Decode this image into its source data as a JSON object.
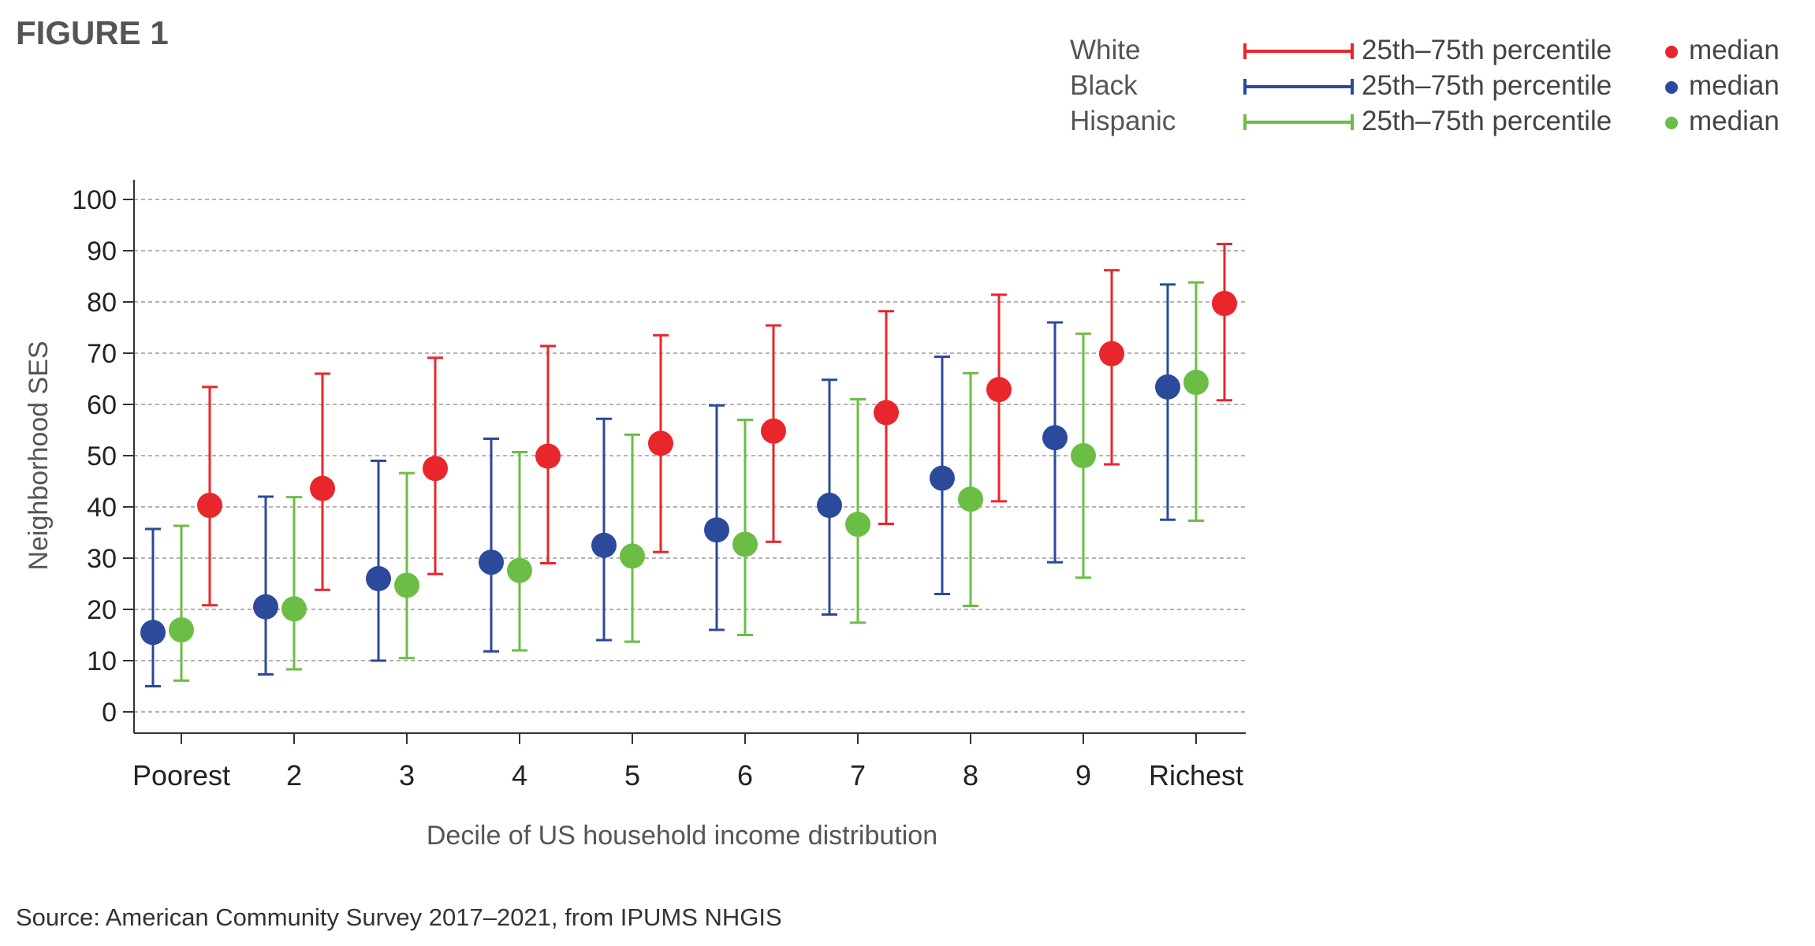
{
  "figure_label": "FIGURE 1",
  "source": "Source: American Community Survey 2017–2021, from IPUMS NHGIS",
  "legend": {
    "rows": [
      {
        "group": "White",
        "range_label": "25th–75th percentile",
        "median_label": "median",
        "color": "#e8262b"
      },
      {
        "group": "Black",
        "range_label": "25th–75th percentile",
        "median_label": "median",
        "color": "#2b4a9b"
      },
      {
        "group": "Hispanic",
        "range_label": "25th–75th percentile",
        "median_label": "median",
        "color": "#6cbd45"
      }
    ]
  },
  "chart_data": {
    "type": "scatter",
    "subtype": "dot-and-range",
    "title": "",
    "xlabel": "Decile of US household income distribution",
    "ylabel": "Neighborhood SES",
    "ylim": [
      0,
      100
    ],
    "yticks": [
      0,
      10,
      20,
      30,
      40,
      50,
      60,
      70,
      80,
      90,
      100
    ],
    "grid": true,
    "categories": [
      "Poorest",
      "2",
      "3",
      "4",
      "5",
      "6",
      "7",
      "8",
      "9",
      "Richest"
    ],
    "series": [
      {
        "name": "Black",
        "color": "#2b4a9b",
        "median": [
          15.5,
          20.5,
          26,
          29.2,
          32.5,
          35.5,
          40.3,
          45.6,
          53.5,
          63.4
        ],
        "p25": [
          5,
          7.3,
          10,
          11.8,
          14,
          16,
          19,
          23,
          29.2,
          37.5
        ],
        "p75": [
          35.7,
          42,
          49,
          53.3,
          57.2,
          59.8,
          64.8,
          69.3,
          76,
          83.4
        ]
      },
      {
        "name": "Hispanic",
        "color": "#6cbd45",
        "median": [
          16,
          20.1,
          24.7,
          27.6,
          30.4,
          32.7,
          36.6,
          41.5,
          50,
          64.3
        ],
        "p25": [
          6.1,
          8.3,
          10.5,
          12,
          13.7,
          15,
          17.4,
          20.7,
          26.2,
          37.3
        ],
        "p75": [
          36.3,
          41.9,
          46.6,
          50.7,
          54.1,
          57,
          61,
          66.1,
          73.8,
          83.8
        ]
      },
      {
        "name": "White",
        "color": "#e8262b",
        "median": [
          40.3,
          43.6,
          47.5,
          49.9,
          52.4,
          54.8,
          58.4,
          62.9,
          69.9,
          79.7
        ],
        "p25": [
          20.8,
          23.8,
          26.9,
          29,
          31.2,
          33.2,
          36.7,
          41.1,
          48.3,
          60.8
        ],
        "p75": [
          63.4,
          66,
          69.1,
          71.4,
          73.5,
          75.4,
          78.2,
          81.4,
          86.2,
          91.3
        ]
      }
    ]
  }
}
